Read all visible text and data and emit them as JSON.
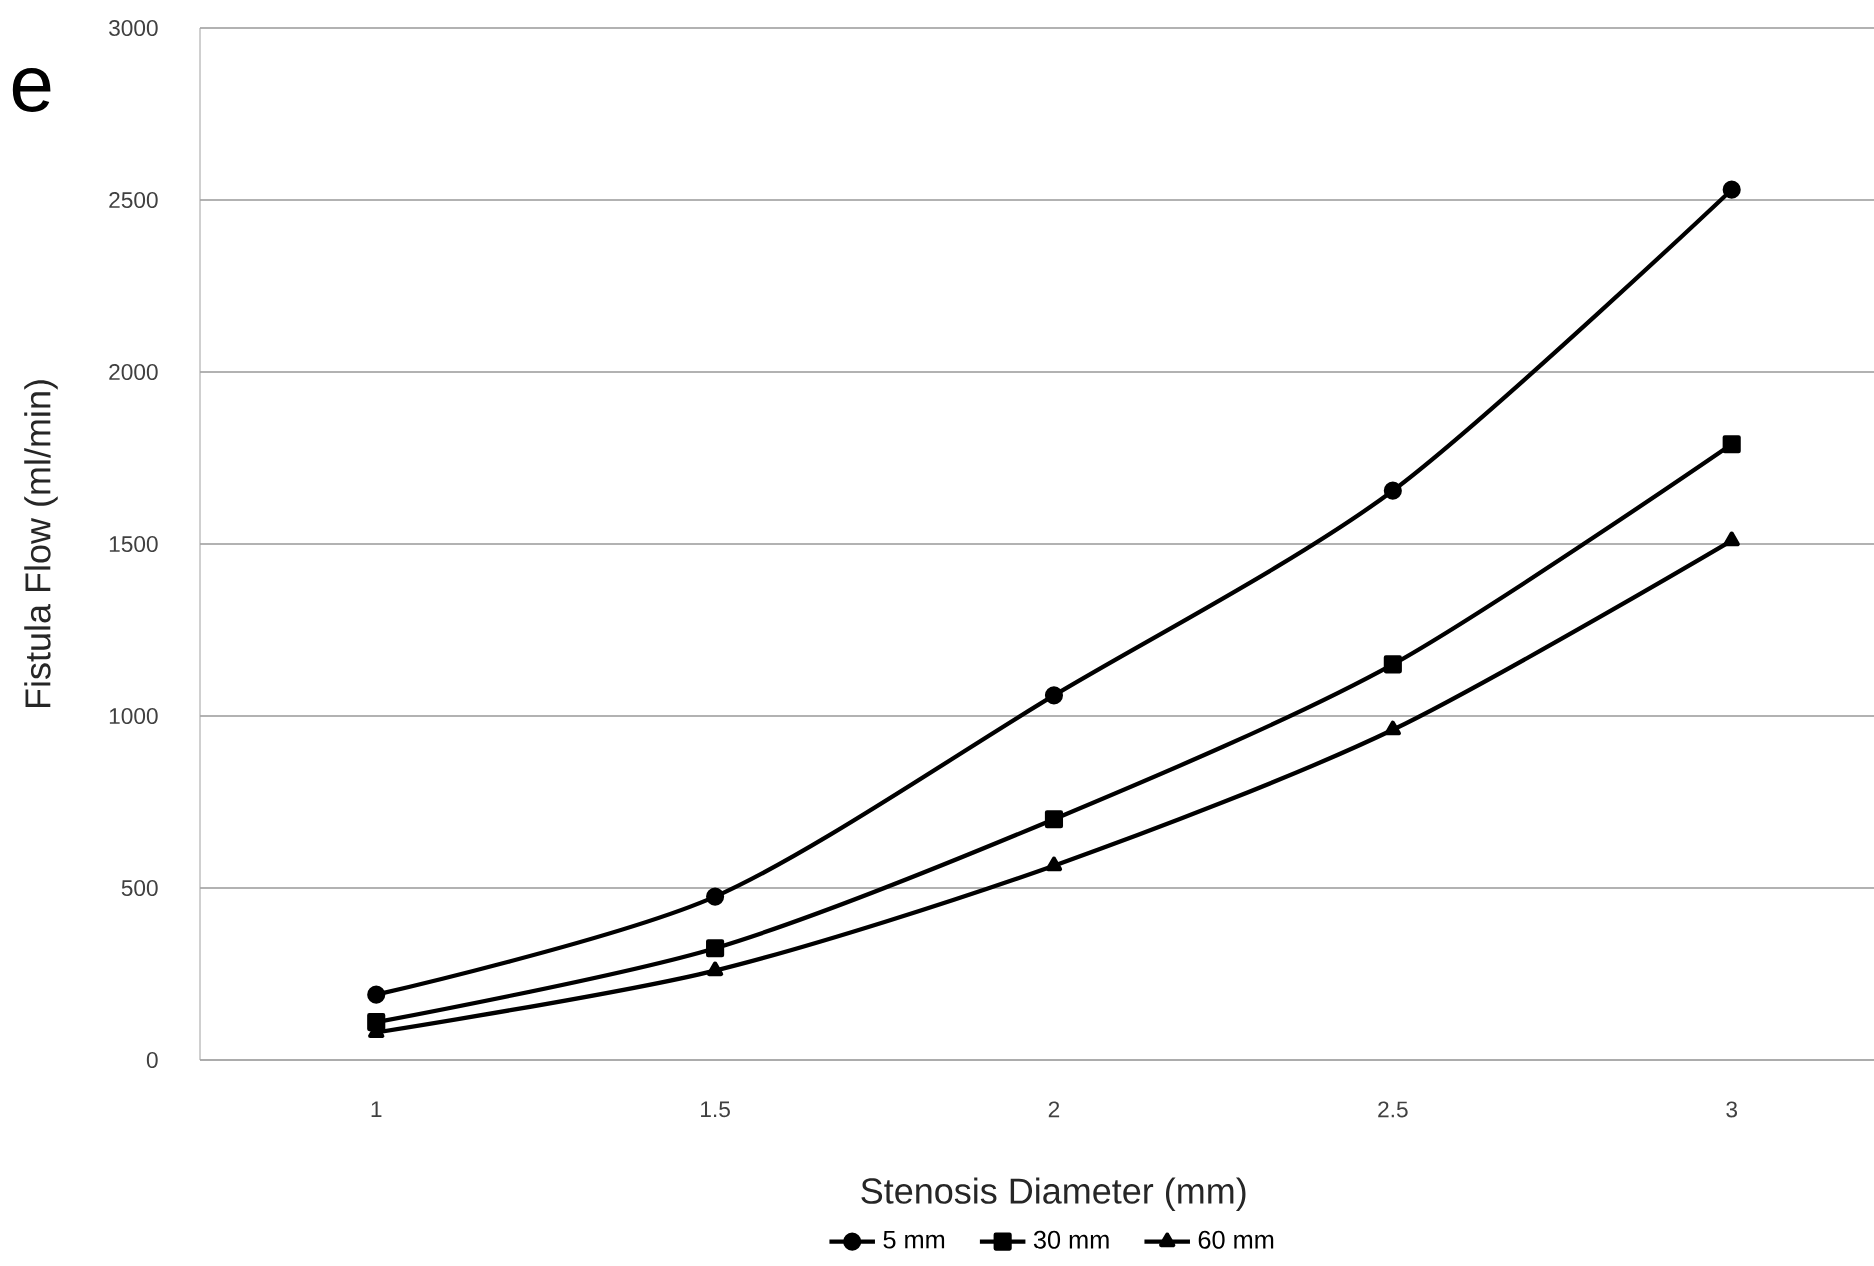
{
  "chart_data": {
    "type": "line",
    "xlabel": "Stenosis Diameter (mm)",
    "ylabel": "Fistula Flow (ml/min)",
    "annotations": [
      "e"
    ],
    "x": [
      1,
      1.5,
      2,
      2.5,
      3
    ],
    "series": [
      {
        "name": "5 mm",
        "color": "#000000",
        "marker": "circle",
        "values": [
          190,
          475,
          1060,
          1655,
          2530
        ]
      },
      {
        "name": "30 mm",
        "color": "#000000",
        "marker": "square",
        "values": [
          110,
          325,
          700,
          1150,
          1790
        ]
      },
      {
        "name": "60 mm",
        "color": "#000000",
        "marker": "triangle",
        "values": [
          80,
          260,
          565,
          960,
          1510
        ]
      }
    ],
    "xlim": [
      0.74,
      3.21
    ],
    "ylim": [
      0,
      3000
    ],
    "xticks": [
      1,
      1.5,
      2,
      2.5,
      3
    ],
    "yticks": [
      0,
      500,
      1000,
      1500,
      2000,
      2500,
      3000
    ],
    "grid": "y",
    "legend": "bottom",
    "line_style": "solid"
  }
}
